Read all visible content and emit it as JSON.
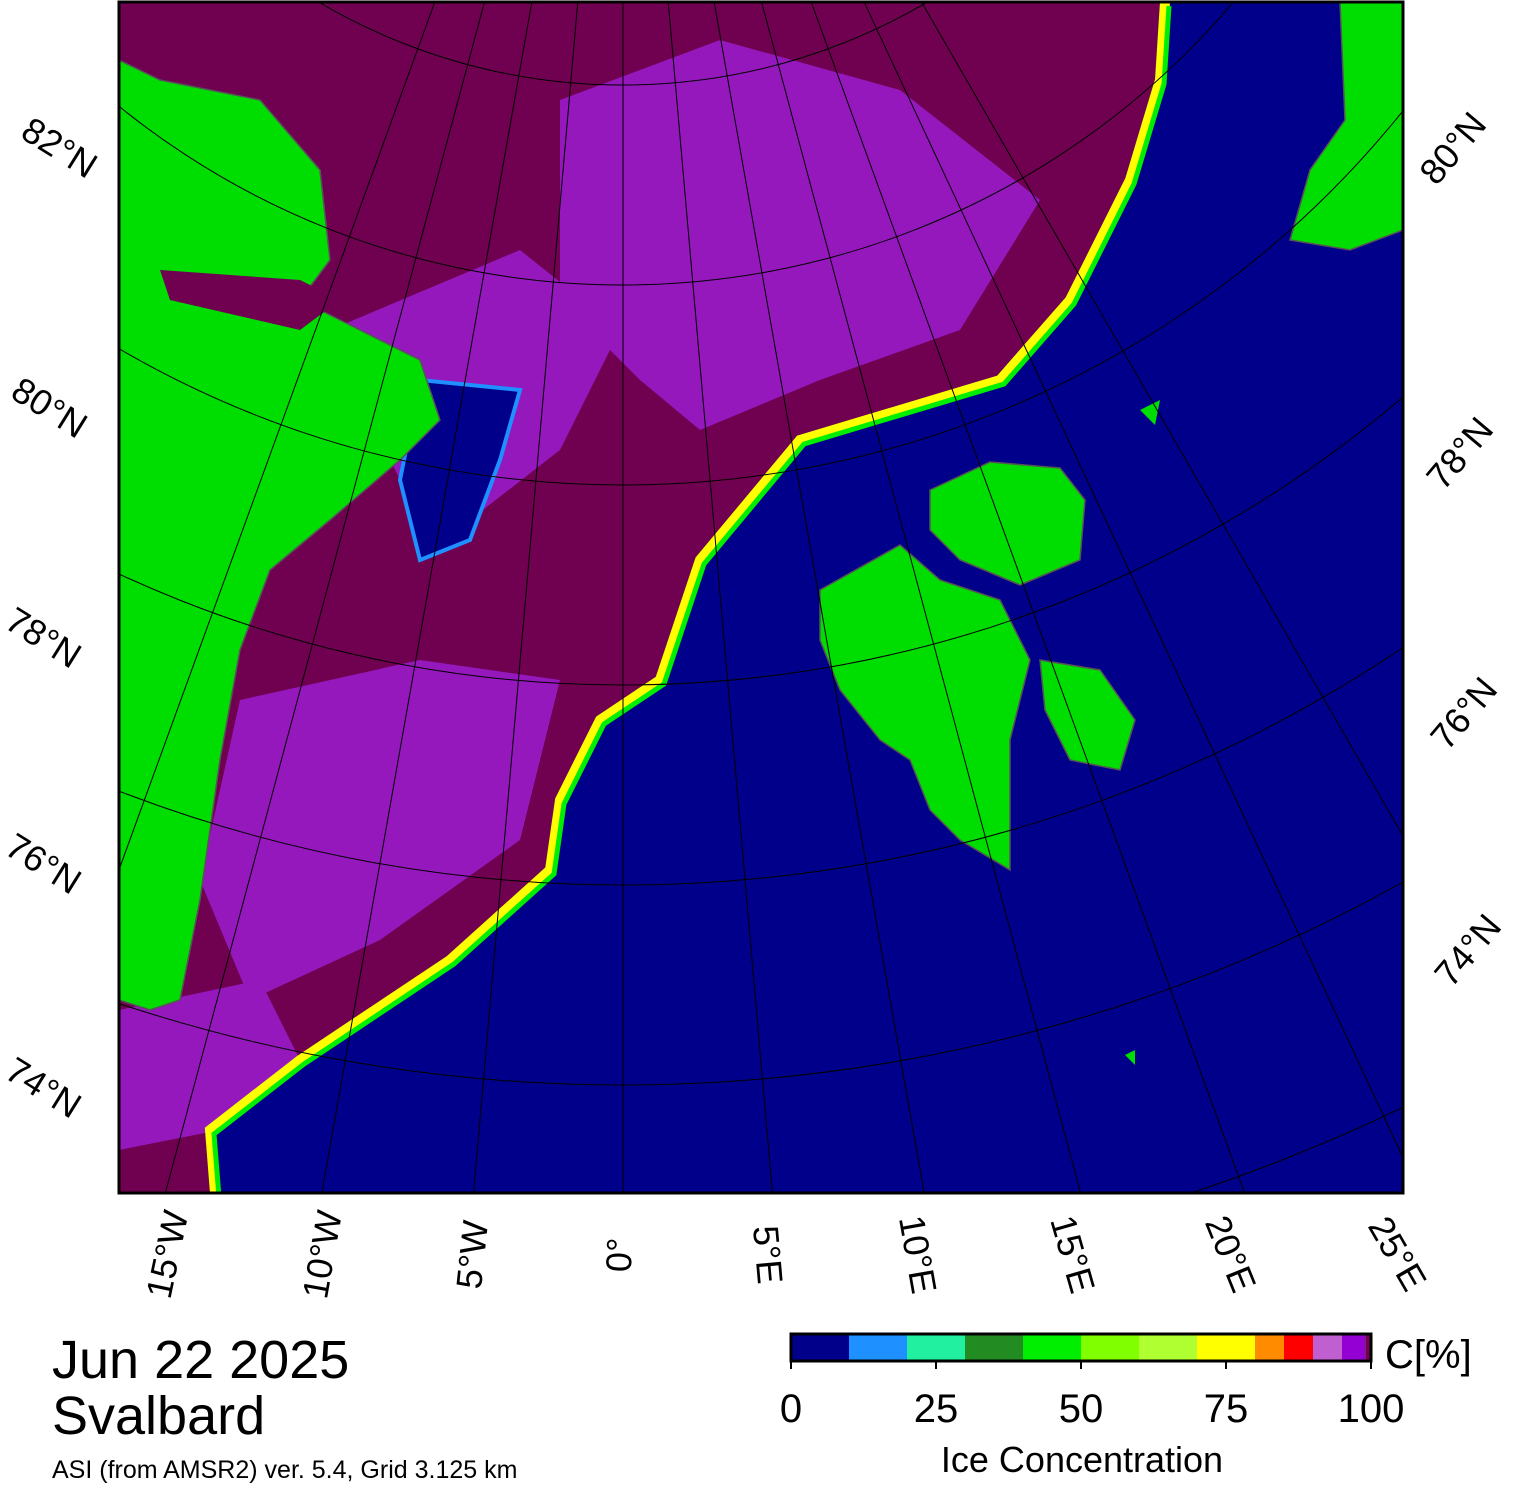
{
  "header": {
    "date": "Jun 22 2025",
    "region": "Svalbard",
    "source": "ASI (from AMSR2) ver. 5.4,  Grid 3.125 km"
  },
  "map": {
    "lat_labels_left": [
      "82°N",
      "80°N",
      "78°N",
      "76°N",
      "74°N"
    ],
    "lat_labels_right": [
      "80°N",
      "78°N",
      "76°N",
      "74°N"
    ],
    "lon_labels": [
      "15°W",
      "10°W",
      "5°W",
      "0°",
      "5°E",
      "10°E",
      "15°E",
      "20°E",
      "25°E"
    ]
  },
  "colorbar": {
    "label": "Ice Concentration",
    "unit": "C[%]",
    "ticks": [
      0,
      25,
      50,
      75,
      100
    ],
    "bounds": [
      0,
      10,
      20,
      30,
      40,
      50,
      60,
      70,
      80,
      85,
      90,
      95,
      99,
      100
    ],
    "colors": [
      "#00008b",
      "#1e90ff",
      "#20f0a0",
      "#228b22",
      "#00ee00",
      "#7fff00",
      "#b0ff30",
      "#ffff00",
      "#ff8c00",
      "#ff0000",
      "#c060d0",
      "#9400d3",
      "#700050"
    ]
  }
}
